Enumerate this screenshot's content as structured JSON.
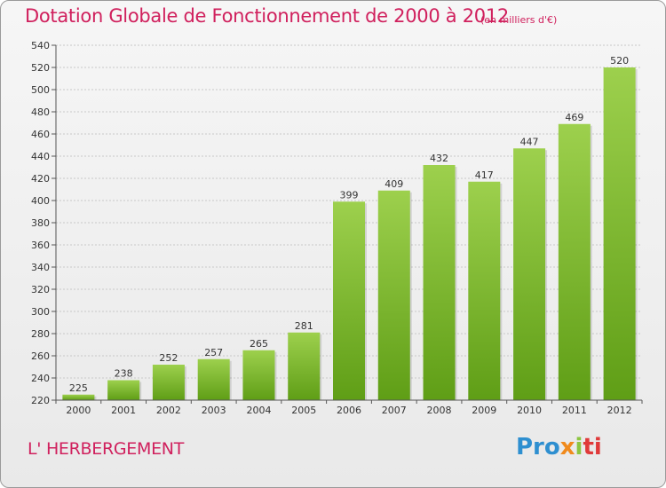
{
  "header": {
    "title": "Dotation Globale de Fonctionnement de 2000 à 2012",
    "unit": "(en milliers d'€)"
  },
  "footer": {
    "commune": "L' HERBERGEMENT",
    "logo": [
      "Pro",
      "x",
      "i",
      "ti"
    ]
  },
  "colors": {
    "title": "#d0205d",
    "bar_top": "#9dd04d",
    "bar_bottom": "#5f9e16",
    "grid": "#c8c8c8"
  },
  "chart_data": {
    "type": "bar",
    "title": "Dotation Globale de Fonctionnement de 2000 à 2012",
    "subtitle": "(en milliers d'€)",
    "xlabel": "",
    "ylabel": "",
    "categories": [
      "2000",
      "2001",
      "2002",
      "2003",
      "2004",
      "2005",
      "2006",
      "2007",
      "2008",
      "2009",
      "2010",
      "2011",
      "2012"
    ],
    "values": [
      225,
      238,
      252,
      257,
      265,
      281,
      399,
      409,
      432,
      417,
      447,
      469,
      520
    ],
    "ylim": [
      220,
      540
    ],
    "yticks": [
      "220",
      "240",
      "260",
      "280",
      "300",
      "320",
      "340",
      "360",
      "380",
      "400",
      "420",
      "440",
      "460",
      "480",
      "500",
      "520",
      "540"
    ],
    "grid": true,
    "legend": "none"
  }
}
